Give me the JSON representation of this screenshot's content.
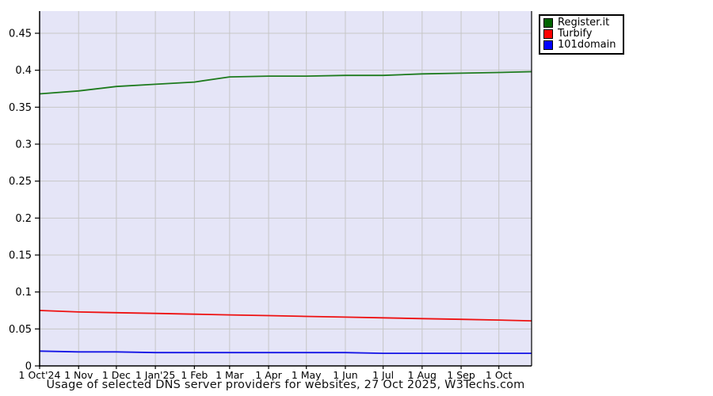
{
  "title": "Usage of selected DNS server providers for websites, 27 Oct 2025, W3Techs.com",
  "legend": {
    "entries": [
      {
        "label": "Register.it",
        "color": "#006400"
      },
      {
        "label": "Turbify",
        "color": "#ff0000"
      },
      {
        "label": "101domain",
        "color": "#0000ff"
      }
    ]
  },
  "chart_data": {
    "type": "line",
    "title": "Usage of selected DNS server providers for websites, 27 Oct 2025, W3Techs.com",
    "x_days": [
      0,
      31,
      61,
      92,
      123,
      151,
      182,
      212,
      243,
      273,
      304,
      335,
      365,
      391
    ],
    "x_ticks": [
      {
        "day": 0,
        "label": "1 Oct'24"
      },
      {
        "day": 31,
        "label": "1 Nov"
      },
      {
        "day": 61,
        "label": "1 Dec"
      },
      {
        "day": 92,
        "label": "1 Jan'25"
      },
      {
        "day": 123,
        "label": "1 Feb"
      },
      {
        "day": 151,
        "label": "1 Mar"
      },
      {
        "day": 182,
        "label": "1 Apr"
      },
      {
        "day": 212,
        "label": "1 May"
      },
      {
        "day": 243,
        "label": "1 Jun"
      },
      {
        "day": 273,
        "label": "1 Jul"
      },
      {
        "day": 304,
        "label": "1 Aug"
      },
      {
        "day": 335,
        "label": "1 Sep"
      },
      {
        "day": 365,
        "label": "1 Oct"
      }
    ],
    "xlim_days": [
      0,
      391
    ],
    "y_ticks": [
      {
        "v": 0,
        "label": "0"
      },
      {
        "v": 0.05,
        "label": "0.05"
      },
      {
        "v": 0.1,
        "label": "0.1"
      },
      {
        "v": 0.15,
        "label": "0.15"
      },
      {
        "v": 0.2,
        "label": "0.2"
      },
      {
        "v": 0.25,
        "label": "0.25"
      },
      {
        "v": 0.3,
        "label": "0.3"
      },
      {
        "v": 0.35,
        "label": "0.35"
      },
      {
        "v": 0.4,
        "label": "0.4"
      },
      {
        "v": 0.45,
        "label": "0.45"
      }
    ],
    "ylim": [
      0,
      0.48
    ],
    "grid": true,
    "legend_position": "top-right-outside",
    "colors": {
      "plot_bg": "#e5e5f7",
      "grid": "#c6c6c6",
      "axis": "#000000",
      "tick_text": "#000000"
    },
    "series": [
      {
        "name": "Register.it",
        "color": "#1e7b1e",
        "values": [
          0.368,
          0.372,
          0.378,
          0.381,
          0.384,
          0.391,
          0.392,
          0.392,
          0.393,
          0.393,
          0.395,
          0.396,
          0.397,
          0.398
        ]
      },
      {
        "name": "Turbify",
        "color": "#ee1111",
        "values": [
          0.075,
          0.073,
          0.072,
          0.071,
          0.07,
          0.069,
          0.068,
          0.067,
          0.066,
          0.065,
          0.064,
          0.063,
          0.062,
          0.061
        ]
      },
      {
        "name": "101domain",
        "color": "#1414e6",
        "values": [
          0.02,
          0.019,
          0.019,
          0.018,
          0.018,
          0.018,
          0.018,
          0.018,
          0.018,
          0.017,
          0.017,
          0.017,
          0.017,
          0.017
        ]
      }
    ]
  }
}
